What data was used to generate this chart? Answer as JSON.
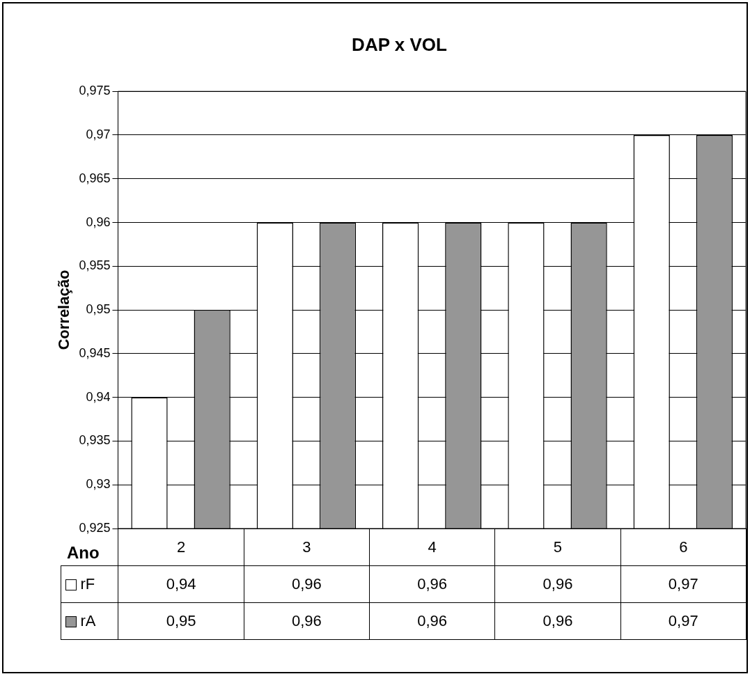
{
  "chart_data": {
    "type": "bar",
    "title": "DAP x VOL",
    "xlabel": "Ano",
    "ylabel": "Correlação",
    "categories": [
      "2",
      "3",
      "4",
      "5",
      "6"
    ],
    "series": [
      {
        "name": "rF",
        "color": "#ffffff",
        "values": [
          0.94,
          0.96,
          0.96,
          0.96,
          0.97
        ],
        "value_labels": [
          "0,94",
          "0,96",
          "0,96",
          "0,96",
          "0,97"
        ]
      },
      {
        "name": "rA",
        "color": "#969696",
        "values": [
          0.95,
          0.96,
          0.96,
          0.96,
          0.97
        ],
        "value_labels": [
          "0,95",
          "0,96",
          "0,96",
          "0,96",
          "0,97"
        ]
      }
    ],
    "ylim": [
      0.925,
      0.975
    ],
    "yticks": [
      {
        "value": 0.925,
        "label": "0,925"
      },
      {
        "value": 0.93,
        "label": "0,93"
      },
      {
        "value": 0.935,
        "label": "0,935"
      },
      {
        "value": 0.94,
        "label": "0,94"
      },
      {
        "value": 0.945,
        "label": "0,945"
      },
      {
        "value": 0.95,
        "label": "0,95"
      },
      {
        "value": 0.955,
        "label": "0,955"
      },
      {
        "value": 0.96,
        "label": "0,96"
      },
      {
        "value": 0.965,
        "label": "0,965"
      },
      {
        "value": 0.97,
        "label": "0,97"
      },
      {
        "value": 0.975,
        "label": "0,975"
      }
    ],
    "grid": "y",
    "legend": "bottom"
  }
}
